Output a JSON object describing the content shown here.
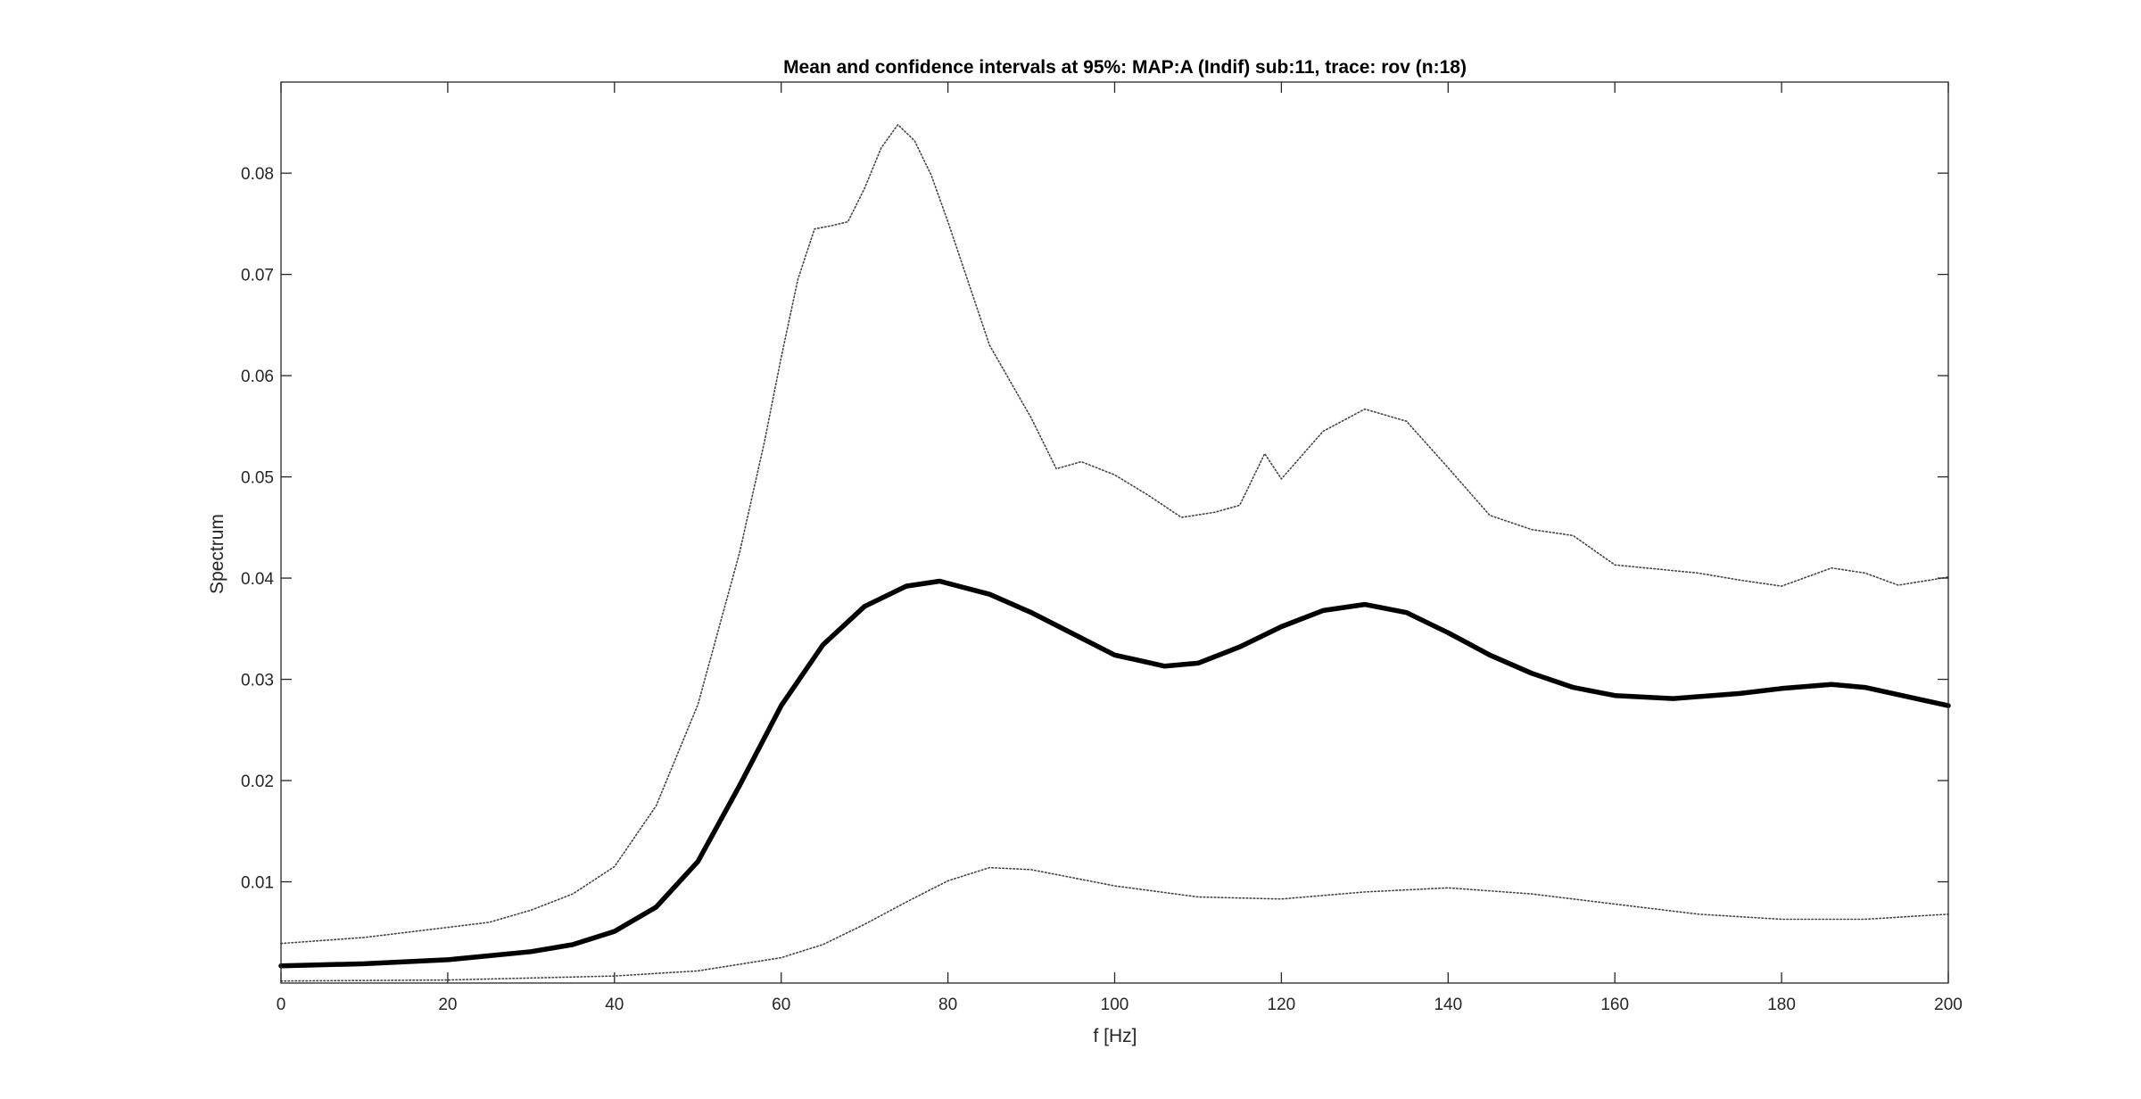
{
  "chart_data": {
    "type": "line",
    "title": "Mean and confidence intervals at 95%: MAP:A (Indif) sub:11, trace: rov (n:18)",
    "xlabel": "f [Hz]",
    "ylabel": "Spectrum",
    "xlim": [
      0,
      200
    ],
    "ylim": [
      0,
      0.089
    ],
    "x_ticks": [
      0,
      20,
      40,
      60,
      80,
      100,
      120,
      140,
      160,
      180,
      200
    ],
    "y_ticks": [
      0.01,
      0.02,
      0.03,
      0.04,
      0.05,
      0.06,
      0.07,
      0.08
    ],
    "x_tick_labels": [
      "0",
      "20",
      "40",
      "60",
      "80",
      "100",
      "120",
      "140",
      "160",
      "180",
      "200"
    ],
    "y_tick_labels": [
      "0.01",
      "0.02",
      "0.03",
      "0.04",
      "0.05",
      "0.06",
      "0.07",
      "0.08"
    ],
    "grid": false,
    "box": true,
    "series": [
      {
        "style": "solid-thick",
        "color": "#000000",
        "x": [
          0,
          10,
          20,
          25,
          30,
          35,
          40,
          45,
          50,
          55,
          60,
          65,
          70,
          75,
          79,
          85,
          90,
          95,
          100,
          106,
          110,
          115,
          120,
          125,
          130,
          135,
          140,
          145,
          150,
          155,
          160,
          167,
          175,
          180,
          186,
          190,
          195,
          200
        ],
        "y": [
          0.0017,
          0.0019,
          0.0023,
          0.0027,
          0.0031,
          0.0038,
          0.0051,
          0.0075,
          0.012,
          0.0195,
          0.0274,
          0.0334,
          0.0372,
          0.0392,
          0.0397,
          0.0384,
          0.0366,
          0.0345,
          0.0324,
          0.0313,
          0.0316,
          0.0332,
          0.0352,
          0.0368,
          0.0374,
          0.0366,
          0.0346,
          0.0324,
          0.0306,
          0.0292,
          0.0284,
          0.0281,
          0.0286,
          0.0291,
          0.0295,
          0.0292,
          0.0283,
          0.0274
        ]
      },
      {
        "style": "dotted",
        "color": "#444444",
        "x": [
          0,
          10,
          20,
          25,
          30,
          35,
          40,
          45,
          50,
          55,
          58,
          60,
          62,
          64,
          66,
          68,
          70,
          72,
          74,
          76,
          78,
          80,
          85,
          90,
          93,
          96,
          100,
          104,
          108,
          112,
          115,
          118,
          120,
          125,
          130,
          135,
          140,
          145,
          150,
          155,
          160,
          170,
          175,
          180,
          186,
          190,
          194,
          200
        ],
        "y": [
          0.0039,
          0.0045,
          0.0055,
          0.006,
          0.0072,
          0.0088,
          0.0115,
          0.0175,
          0.0275,
          0.0425,
          0.0535,
          0.0618,
          0.0695,
          0.0745,
          0.0748,
          0.0752,
          0.0785,
          0.0825,
          0.0848,
          0.0832,
          0.0798,
          0.0752,
          0.063,
          0.0558,
          0.0508,
          0.0515,
          0.0502,
          0.0482,
          0.046,
          0.0465,
          0.0472,
          0.0523,
          0.0498,
          0.0545,
          0.0567,
          0.0555,
          0.0509,
          0.0462,
          0.0448,
          0.0442,
          0.0413,
          0.0405,
          0.0398,
          0.0392,
          0.041,
          0.0405,
          0.0393,
          0.0401
        ]
      },
      {
        "style": "dotted",
        "color": "#444444",
        "x": [
          0,
          20,
          40,
          50,
          60,
          65,
          70,
          75,
          80,
          85,
          90,
          95,
          100,
          110,
          120,
          130,
          140,
          150,
          160,
          170,
          180,
          190,
          200
        ],
        "y": [
          0.0002,
          0.0003,
          0.0007,
          0.0012,
          0.0025,
          0.0038,
          0.0058,
          0.008,
          0.0101,
          0.0114,
          0.0112,
          0.0104,
          0.0096,
          0.0085,
          0.0083,
          0.009,
          0.0094,
          0.0088,
          0.0078,
          0.0068,
          0.0063,
          0.0063,
          0.0068
        ]
      }
    ]
  }
}
